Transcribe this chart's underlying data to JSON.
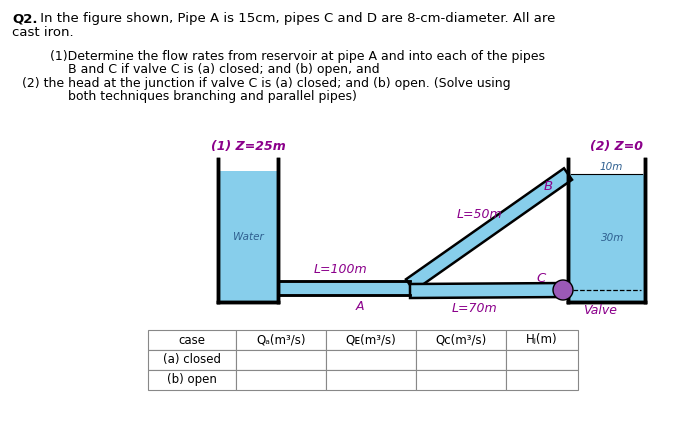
{
  "page_bg": "#ffffff",
  "water_color": "#87CEEB",
  "pipe_color": "#87CEEB",
  "valve_color": "#9B59B6",
  "italic_color": "#8B008B",
  "dim_color": "#2F6090",
  "line_color": "#000000",
  "text_color": "#000000",
  "z1_label": "(1) Z=25m",
  "z2_label": "(2) Z=0",
  "water_label": "Water",
  "L50": "L=50m",
  "L100": "L=100m",
  "L70": "L=70m",
  "lbl_B": "B",
  "lbl_A": "A",
  "lbl_C": "C",
  "lbl_valve": "Valve",
  "dim_10m": "10m",
  "dim_30m": "30m",
  "col_headers": [
    "case",
    "Qₐ(m³/s)",
    "Qᴇ(m³/s)",
    "Qᴄ(m³/s)",
    "Hⱼ(m)"
  ],
  "table_rows": [
    "(a) closed",
    "(b) open"
  ],
  "title_q": "Q2.",
  "title_rest": " In the figure shown, Pipe A is 15cm, pipes C and D are 8-cm-diameter. All are",
  "title_line2": "cast iron.",
  "p1a": "(1)Determine the flow rates from reservoir at pipe A and into each of the pipes",
  "p1b": "B and C if valve C is (a) closed; and (b) open, and",
  "p2a": "(2) the head at the junction if valve C is (a) closed; and (b) open. (Solve using",
  "p2b": "both techniques branching and parallel pipes)"
}
